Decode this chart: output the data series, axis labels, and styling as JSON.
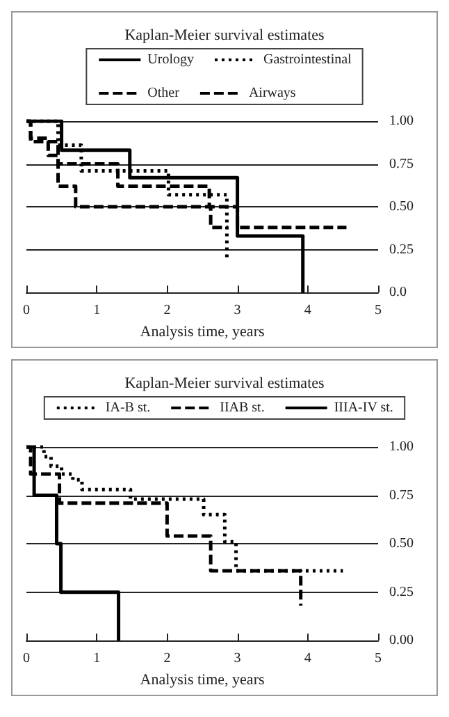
{
  "chart_data": [
    {
      "type": "step",
      "title": "Kaplan-Meier survival estimates",
      "xlabel": "Analysis time, years",
      "xlim": [
        0,
        5
      ],
      "xticks": [
        0,
        1,
        2,
        3,
        4,
        5
      ],
      "ylim": [
        0,
        1
      ],
      "yticks": [
        {
          "value": 0,
          "label": "0.0"
        },
        {
          "value": 0.25,
          "label": "0.25"
        },
        {
          "value": 0.5,
          "label": "0.50"
        },
        {
          "value": 0.75,
          "label": "0.75"
        },
        {
          "value": 1,
          "label": "1.00"
        }
      ],
      "grid": "y",
      "legend": "top",
      "marker": "none",
      "series": [
        {
          "name": "Urology",
          "color": "#000000",
          "line_style": "solid",
          "x": [
            0,
            0.5,
            1.47,
            3.0,
            3.93
          ],
          "values": [
            1,
            0.83,
            0.67,
            0.33,
            0
          ]
        },
        {
          "name": "Gastrointestinal",
          "color": "#000000",
          "line_style": "dotted",
          "x": [
            0,
            0.45,
            0.78,
            2.02,
            2.85
          ],
          "values": [
            1,
            0.86,
            0.71,
            0.57,
            0.2
          ]
        },
        {
          "name": "Other",
          "color": "#000000",
          "line_style": "dashed",
          "x": [
            0,
            0.06,
            0.45,
            0.7,
            2.62,
            2.87
          ],
          "values": [
            1,
            0.88,
            0.62,
            0.5,
            0.38,
            0.38
          ]
        },
        {
          "name": "Airways",
          "color": "#000000",
          "line_style": "dashed",
          "x": [
            0,
            0.06,
            0.31,
            0.45,
            1.3,
            2.6,
            3.0,
            4.55
          ],
          "values": [
            1,
            0.9,
            0.8,
            0.75,
            0.62,
            0.5,
            0.38,
            0.38
          ]
        }
      ]
    },
    {
      "type": "step",
      "title": "Kaplan-Meier survival estimates",
      "xlabel": "Analysis time, years",
      "xlim": [
        0,
        5
      ],
      "xticks": [
        0,
        1,
        2,
        3,
        4,
        5
      ],
      "ylim": [
        0,
        1
      ],
      "yticks": [
        {
          "value": 0,
          "label": "0.00"
        },
        {
          "value": 0.25,
          "label": "0.25"
        },
        {
          "value": 0.5,
          "label": "0.50"
        },
        {
          "value": 0.75,
          "label": "0.75"
        },
        {
          "value": 1,
          "label": "1.00"
        }
      ],
      "grid": "y",
      "legend": "top",
      "marker": "none",
      "series": [
        {
          "name": "IA-B st.",
          "color": "#000000",
          "line_style": "dotted",
          "x": [
            0,
            0.25,
            0.35,
            0.5,
            0.66,
            0.79,
            1.48,
            2.52,
            2.82,
            2.98,
            4.5
          ],
          "values": [
            1,
            0.95,
            0.9,
            0.86,
            0.83,
            0.78,
            0.73,
            0.65,
            0.51,
            0.36,
            0.36
          ]
        },
        {
          "name": "IIAB st.",
          "color": "#000000",
          "line_style": "dashed",
          "x": [
            0,
            0.06,
            0.47,
            2.0,
            2.62,
            3.9
          ],
          "values": [
            1,
            0.86,
            0.71,
            0.54,
            0.36,
            0.18
          ]
        },
        {
          "name": "IIIA-IV st.",
          "color": "#000000",
          "line_style": "solid",
          "x": [
            0,
            0.11,
            0.43,
            0.49,
            1.31
          ],
          "values": [
            1,
            0.75,
            0.5,
            0.25,
            0
          ]
        }
      ]
    }
  ]
}
